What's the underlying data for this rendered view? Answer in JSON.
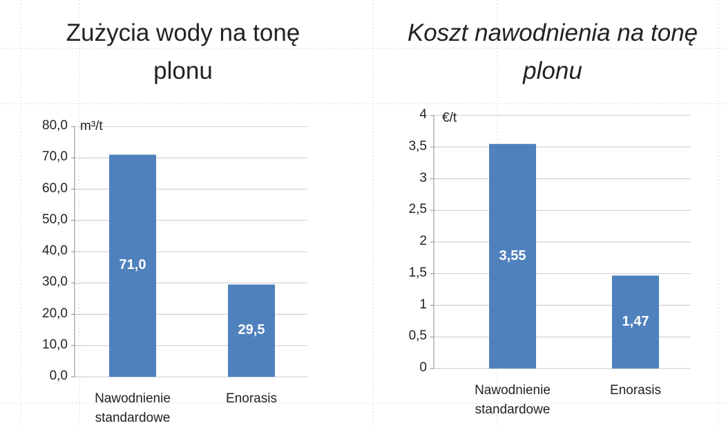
{
  "chart_data": [
    {
      "type": "bar",
      "title": "Zużycia wody na tonę plonu",
      "ylabel": "m³/t",
      "categories": [
        "Nawodnienie standardowe",
        "Enorasis"
      ],
      "values": [
        71.0,
        29.5
      ],
      "value_labels": [
        "71,0",
        "29,5"
      ],
      "color": "#4f81bd",
      "ylim": [
        0,
        80
      ],
      "yticks": [
        {
          "value": 0,
          "label": "0,0"
        },
        {
          "value": 10,
          "label": "10,0"
        },
        {
          "value": 20,
          "label": "20,0"
        },
        {
          "value": 30,
          "label": "30,0"
        },
        {
          "value": 40,
          "label": "40,0"
        },
        {
          "value": 50,
          "label": "50,0"
        },
        {
          "value": 60,
          "label": "60,0"
        },
        {
          "value": 70,
          "label": "70,0"
        },
        {
          "value": 80,
          "label": "80,0"
        }
      ],
      "grid": true
    },
    {
      "type": "bar",
      "title": "Koszt nawodnienia na tonę plonu",
      "ylabel": "€/t",
      "categories": [
        "Nawodnienie standardowe",
        "Enorasis"
      ],
      "values": [
        3.55,
        1.47
      ],
      "value_labels": [
        "3,55",
        "1,47"
      ],
      "color": "#4f81bd",
      "ylim": [
        0,
        4
      ],
      "yticks": [
        0,
        {
          "value": 0.5,
          "label": "0,5"
        },
        1,
        {
          "value": 1.5,
          "label": "1,5"
        },
        2,
        {
          "value": 2.5,
          "label": "2,5"
        },
        3,
        {
          "value": 3.5,
          "label": "3,5"
        },
        4
      ],
      "grid": true
    }
  ]
}
